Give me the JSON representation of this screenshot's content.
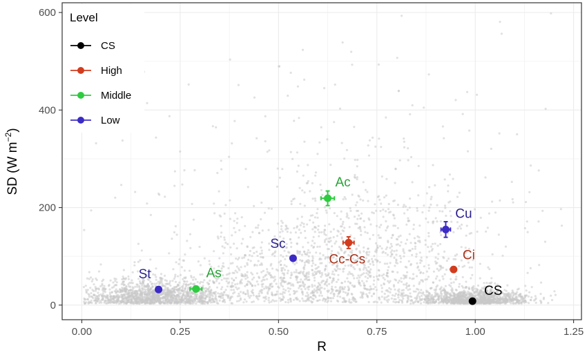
{
  "chart_data": {
    "type": "scatter",
    "xlabel": "R",
    "ylabel": "SD (W m",
    "ylabel_sup": "−2",
    "ylabel_close": ")",
    "xlim": [
      -0.05,
      1.27
    ],
    "ylim": [
      -30,
      620
    ],
    "xticks": [
      0.0,
      0.25,
      0.5,
      0.75,
      1.0,
      1.25
    ],
    "xtick_labels": [
      "0.00",
      "0.25",
      "0.50",
      "0.75",
      "1.00",
      "1.25"
    ],
    "yticks": [
      0,
      200,
      400,
      600
    ],
    "ytick_labels": [
      "0",
      "200",
      "400",
      "600"
    ],
    "grid": true,
    "legend": {
      "title": "Level",
      "placement": "top-left",
      "entries": [
        {
          "label": "CS",
          "color": "#000000"
        },
        {
          "label": "High",
          "color": "#d23c1e"
        },
        {
          "label": "Middle",
          "color": "#2ecc40"
        },
        {
          "label": "Low",
          "color": "#3b2bc4"
        }
      ]
    },
    "background_points_color": "#c8c8c8",
    "points": [
      {
        "label": "St",
        "level": "Low",
        "x": 0.195,
        "y": 32,
        "xerr": 0.006,
        "yerr": 3,
        "color": "#3b2bc4",
        "label_color": "#2a1f8f"
      },
      {
        "label": "As",
        "level": "Middle",
        "x": 0.29,
        "y": 33,
        "xerr": 0.015,
        "yerr": 4,
        "color": "#2ecc40",
        "label_color": "#27a236"
      },
      {
        "label": "Sc",
        "level": "Low",
        "x": 0.537,
        "y": 96,
        "xerr": 0.006,
        "yerr": 4,
        "color": "#3b2bc4",
        "label_color": "#2a1f8f"
      },
      {
        "label": "Ac",
        "level": "Middle",
        "x": 0.625,
        "y": 219,
        "xerr": 0.017,
        "yerr": 15,
        "color": "#2ecc40",
        "label_color": "#27a236"
      },
      {
        "label": "Cc-Cs",
        "level": "High",
        "x": 0.678,
        "y": 128,
        "xerr": 0.014,
        "yerr": 12,
        "color": "#d23c1e",
        "label_color": "#a8321a"
      },
      {
        "label": "Cu",
        "level": "Low",
        "x": 0.925,
        "y": 155,
        "xerr": 0.012,
        "yerr": 16,
        "color": "#3b2bc4",
        "label_color": "#2a1f8f"
      },
      {
        "label": "Ci",
        "level": "High",
        "x": 0.945,
        "y": 73,
        "xerr": 0.006,
        "yerr": 4,
        "color": "#d23c1e",
        "label_color": "#a8321a"
      },
      {
        "label": "CS",
        "level": "CS",
        "x": 0.993,
        "y": 8,
        "xerr": 0.004,
        "yerr": 2,
        "color": "#000000",
        "label_color": "#000000"
      }
    ]
  }
}
